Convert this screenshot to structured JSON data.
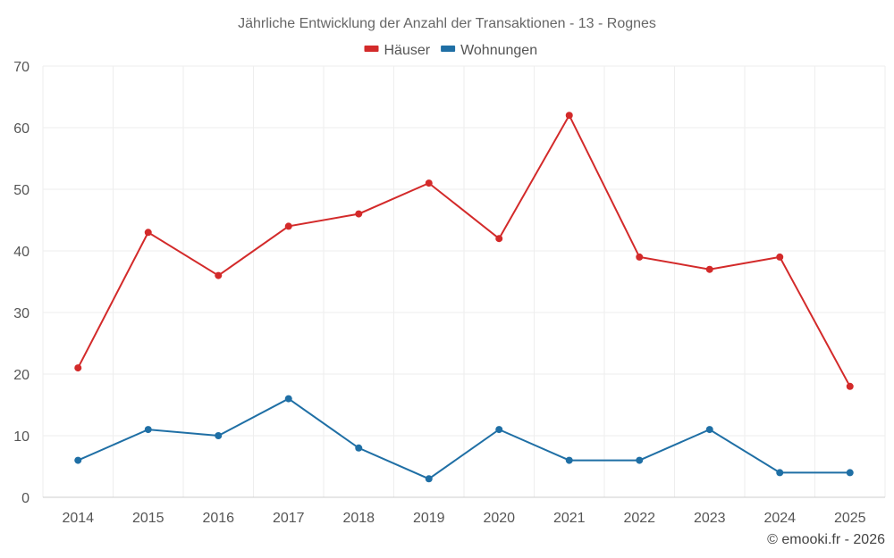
{
  "chart_data": {
    "type": "line",
    "title": "Jährliche Entwicklung der Anzahl der Transaktionen - 13 - Rognes",
    "categories": [
      "2014",
      "2015",
      "2016",
      "2017",
      "2018",
      "2019",
      "2020",
      "2021",
      "2022",
      "2023",
      "2024",
      "2025"
    ],
    "series": [
      {
        "name": "Häuser",
        "color": "#d32a2a",
        "values": [
          21,
          43,
          36,
          44,
          46,
          51,
          42,
          62,
          39,
          37,
          39,
          18
        ]
      },
      {
        "name": "Wohnungen",
        "color": "#1f6fa5",
        "values": [
          6,
          11,
          10,
          16,
          8,
          3,
          11,
          6,
          6,
          11,
          4,
          4
        ]
      }
    ],
    "ylim": [
      0,
      70
    ],
    "yticks": [
      0,
      10,
      20,
      30,
      40,
      50,
      60,
      70
    ],
    "grid": true,
    "legend": "top-center",
    "xlabel": "",
    "ylabel": ""
  },
  "credit": "© emooki.fr - 2026"
}
